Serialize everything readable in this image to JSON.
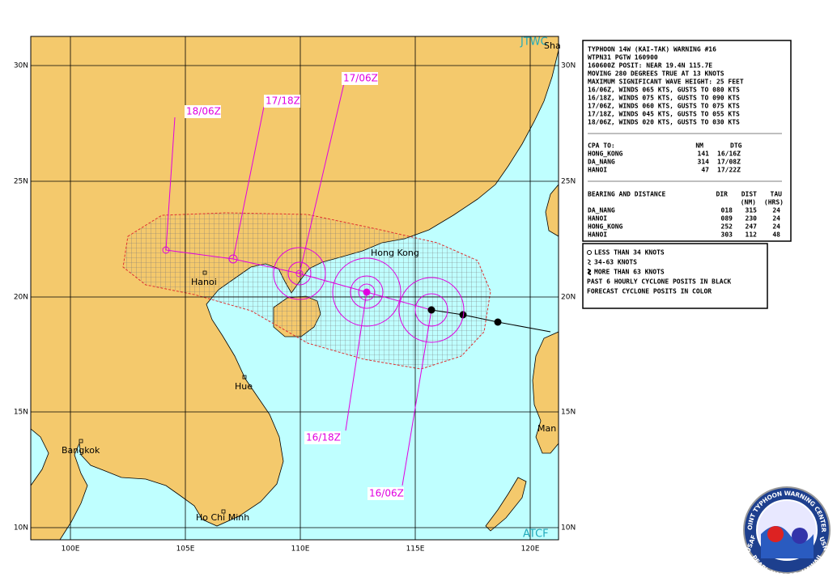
{
  "header": {
    "jtwc": "JTWC",
    "atcf": "ATCF"
  },
  "lat_labels": [
    "30N",
    "25N",
    "20N",
    "15N",
    "10N"
  ],
  "lon_labels": [
    "100E",
    "105E",
    "110E",
    "115E",
    "120E"
  ],
  "places": [
    "Sha",
    "Hong Kong",
    "Hanoi",
    "Hue",
    "Bangkok",
    "Ho Chi Minh",
    "Man"
  ],
  "forecast_labels": [
    "16/06Z",
    "16/18Z",
    "17/06Z",
    "17/18Z",
    "18/06Z"
  ],
  "warning": {
    "lines": [
      "TYPHOON 14W (KAI-TAK) WARNING #16",
      "WTPN31 PGTW 160900",
      "160600Z POSIT: NEAR 19.4N 115.7E",
      "MOVING 280 DEGREES TRUE AT 13 KNOTS",
      "MAXIMUM SIGNIFICANT WAVE HEIGHT: 25 FEET",
      "16/06Z, WINDS 065 KTS, GUSTS TO 080 KTS",
      "16/18Z, WINDS 075 KTS, GUSTS TO 090 KTS",
      "17/06Z, WINDS 060 KTS, GUSTS TO 075 KTS",
      "17/18Z, WINDS 045 KTS, GUSTS TO 055 KTS",
      "18/06Z, WINDS 020 KTS, GUSTS TO 030 KTS"
    ],
    "cpa": {
      "header": [
        "CPA TO:",
        "NM",
        "DTG"
      ],
      "rows": [
        [
          "HONG_KONG",
          "141",
          "16/16Z"
        ],
        [
          "DA_NANG",
          "314",
          "17/08Z"
        ],
        [
          "HANOI",
          "47",
          "17/22Z"
        ]
      ]
    },
    "bearing": {
      "header": [
        "BEARING AND DISTANCE",
        "DIR",
        "DIST",
        "TAU"
      ],
      "subheader": [
        "(NM)",
        "(HRS)"
      ],
      "rows": [
        [
          "DA_NANG",
          "018",
          "315",
          "24"
        ],
        [
          "HANOI",
          "089",
          "230",
          "24"
        ],
        [
          "HONG_KONG",
          "252",
          "247",
          "24"
        ],
        [
          "HANOI",
          "303",
          "112",
          "48"
        ]
      ]
    }
  },
  "legend": [
    "LESS THAN 34 KNOTS",
    "34-63 KNOTS",
    "MORE THAN 63 KNOTS",
    "PAST 6 HOURLY CYCLONE POSITS IN BLACK",
    "FORECAST CYCLONE POSITS IN COLOR"
  ],
  "seal": [
    "JOINT TYPHOON WARNING CENTER",
    "USAF",
    "USN",
    "PEARL HARBOR, HAWAII"
  ]
}
